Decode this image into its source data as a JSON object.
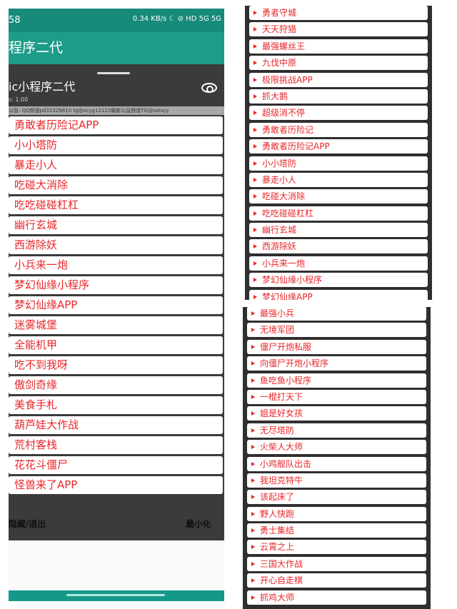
{
  "left": {
    "status": {
      "time": "58",
      "net": "0.34 KB/s",
      "icons": "☾ ⊘ HD 5G 5G"
    },
    "app_title": "程序二代",
    "float_title": "ic小程序二代",
    "float_sub": "s: 1.00",
    "eye_icon": "eye-icon",
    "notice": "公告: QQ频道pd32329810  tg@xcyg12123最新公益频道TG@sotsyy",
    "items": [
      "勇敢者历险记APP",
      "小小塔防",
      "暴走小人",
      "吃碰大消除",
      "吃吃碰碰杠杠",
      "幽行玄城",
      "西游除妖",
      "小兵来一炮",
      "梦幻仙缘小程序",
      "梦幻仙缘APP",
      "迷雾城堡",
      "全能机甲",
      "吃不到我呀",
      "傲剑奇缘",
      "美食手札",
      "葫芦娃大作战",
      "荒村客栈",
      "花花斗僵尸",
      "怪兽来了APP"
    ],
    "hide_exit": "隐藏/退出",
    "minimize": "最小化"
  },
  "right_top": {
    "items": [
      "勇者守城",
      "天天狩猎",
      "最强螺丝王",
      "九伐中原",
      "极限挑战APP",
      "抓大鹅",
      "超级消不停",
      "勇敢者历险记",
      "勇敢者历险记APP",
      "小小塔防",
      "暴走小人",
      "吃碰大消除",
      "吃吃碰碰杠杠",
      "幽行玄城",
      "西游除妖",
      "小兵来一炮",
      "梦幻仙缘小程序",
      "梦幻仙缘APP"
    ]
  },
  "right_bottom": {
    "items": [
      "最强小兵",
      "无境军团",
      "僵尸开炮私服",
      "向僵尸开炮小程序",
      "鱼吃鱼小程序",
      "一棍打天下",
      "姐是好女孩",
      "无尽塔防",
      "火柴人大师",
      "小鸡舰队出击",
      "我坦克特牛",
      "该起床了",
      "野人快跑",
      "勇士集结",
      "云霄之上",
      "三国大作战",
      "开心自走棋",
      "抓鸡大师"
    ]
  },
  "colors": {
    "teal": "#1d9c88",
    "item_text": "#e8262a",
    "panel": "#3b3b3b"
  }
}
